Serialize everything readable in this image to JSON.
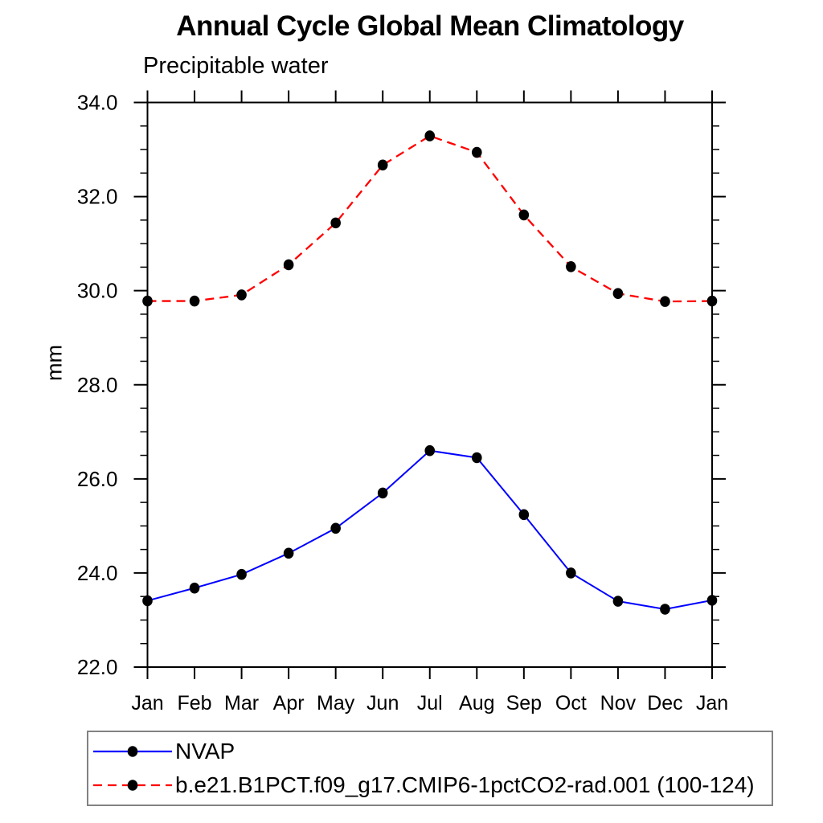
{
  "title": "Annual Cycle Global Mean Climatology",
  "subtitle": "Precipitable water",
  "ylabel": "mm",
  "chart_data": {
    "type": "line",
    "title": "Annual Cycle Global Mean Climatology",
    "subtitle": "Precipitable water",
    "xlabel": "",
    "ylabel": "mm",
    "categories": [
      "Jan",
      "Feb",
      "Mar",
      "Apr",
      "May",
      "Jun",
      "Jul",
      "Aug",
      "Sep",
      "Oct",
      "Nov",
      "Dec",
      "Jan"
    ],
    "ylim": [
      22.0,
      34.0
    ],
    "ytick_major": [
      22,
      24,
      26,
      28,
      30,
      32,
      34
    ],
    "ytick_labels": [
      "22.0",
      "24.0",
      "26.0",
      "28.0",
      "30.0",
      "32.0",
      "34.0"
    ],
    "ytick_minor_step": 0.5,
    "grid": false,
    "legend_position": "bottom-left",
    "marker": {
      "shape": "circle",
      "color": "#000000"
    },
    "series": [
      {
        "name": "NVAP",
        "color": "#0000ff",
        "style": "solid",
        "values": [
          23.41,
          23.68,
          23.97,
          24.42,
          24.95,
          25.7,
          26.6,
          26.45,
          25.24,
          24.0,
          23.4,
          23.23,
          23.42
        ]
      },
      {
        "name": "b.e21.B1PCT.f09_g17.CMIP6-1pctCO2-rad.001 (100-124)",
        "color": "#ff0000",
        "style": "dashed",
        "values": [
          29.78,
          29.78,
          29.91,
          30.55,
          31.44,
          32.67,
          33.29,
          32.94,
          31.61,
          30.51,
          29.94,
          29.77,
          29.78
        ]
      }
    ]
  }
}
